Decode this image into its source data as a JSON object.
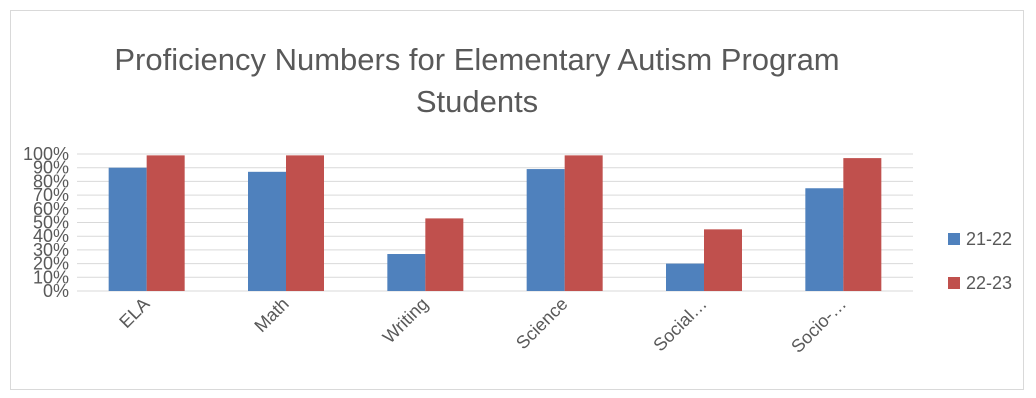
{
  "chart_data": {
    "type": "bar",
    "title_lines": [
      "Proficiency Numbers for Elementary Autism Program",
      "Students"
    ],
    "categories": [
      "ELA",
      "Math",
      "Writing",
      "Science",
      "Social…",
      "Socio-…"
    ],
    "series": [
      {
        "name": "21-22",
        "color": "#4f81bd",
        "values": [
          90,
          87,
          27,
          89,
          20,
          75
        ]
      },
      {
        "name": "22-23",
        "color": "#c0504d",
        "values": [
          99,
          99,
          53,
          99,
          45,
          97
        ]
      }
    ],
    "ylim": [
      0,
      100
    ],
    "y_ticks": [
      "0%",
      "10%",
      "20%",
      "30%",
      "40%",
      "50%",
      "60%",
      "70%",
      "80%",
      "90%",
      "100%"
    ],
    "grid": true,
    "legend_position": "right"
  }
}
